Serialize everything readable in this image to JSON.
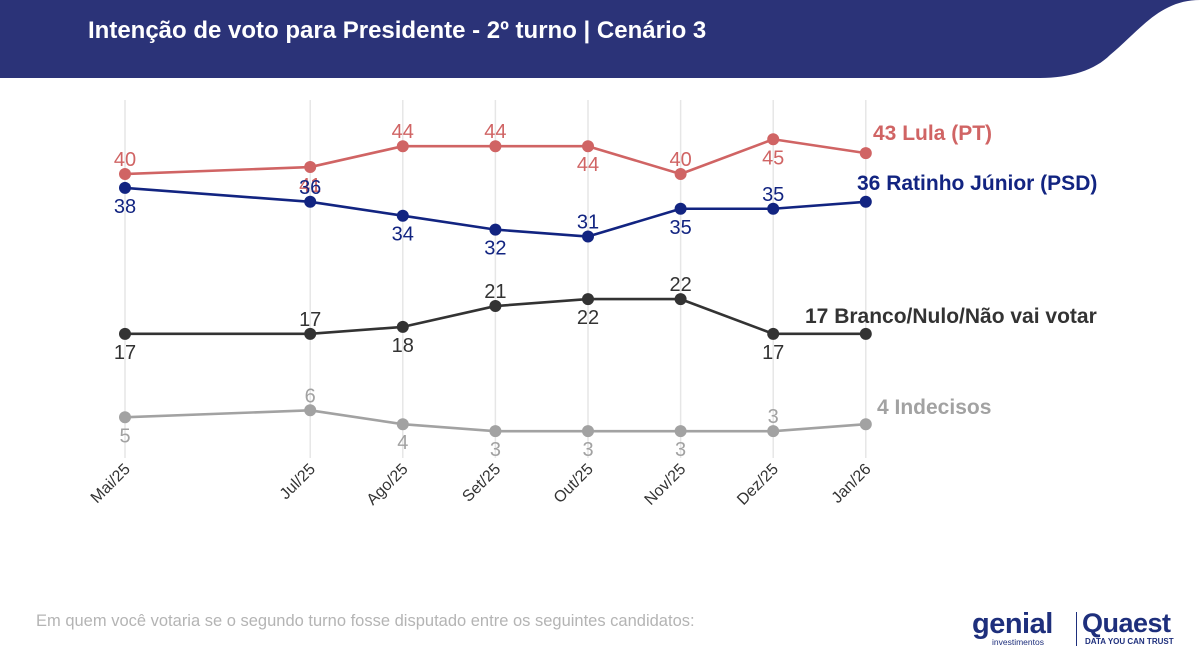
{
  "header": {
    "title": "Intenção de voto para Presidente - 2º turno | Cenário 3",
    "band_color": "#2b3378"
  },
  "chart_data": {
    "type": "line",
    "title": "Intenção de voto para Presidente - 2º turno | Cenário 3",
    "xlabel": "",
    "ylabel": "",
    "categories": [
      "Mai/25",
      "Jul/25",
      "Ago/25",
      "Set/25",
      "Out/25",
      "Nov/25",
      "Dez/25",
      "Jan/26"
    ],
    "category_positions": [
      0,
      2,
      3,
      4,
      5,
      6,
      7,
      8
    ],
    "ylim": [
      0,
      50
    ],
    "grid": "vertical",
    "legend": "direct-labels-right",
    "series": [
      {
        "name": "Lula (PT)",
        "end_label": "43 Lula (PT)",
        "color": "#d06464",
        "values": [
          40,
          41,
          44,
          44,
          44,
          40,
          45,
          43
        ],
        "label_side": [
          "above",
          "below",
          "above",
          "above",
          "below",
          "above",
          "below",
          "none"
        ]
      },
      {
        "name": "Ratinho Júnior (PSD)",
        "end_label": "36 Ratinho Júnior (PSD)",
        "color": "#122481",
        "values": [
          38,
          36,
          34,
          32,
          31,
          35,
          35,
          36
        ],
        "label_side": [
          "below",
          "above",
          "below",
          "below",
          "above",
          "below",
          "above",
          "none"
        ]
      },
      {
        "name": "Branco/Nulo/Não vai votar",
        "end_label": "17 Branco/Nulo/Não vai votar",
        "color": "#333333",
        "values": [
          17,
          17,
          18,
          21,
          22,
          22,
          17,
          17
        ],
        "label_side": [
          "below",
          "above",
          "below",
          "above",
          "below",
          "above",
          "below",
          "none"
        ]
      },
      {
        "name": "Indecisos",
        "end_label": "4 Indecisos",
        "color": "#a2a2a2",
        "values": [
          5,
          6,
          4,
          3,
          3,
          3,
          3,
          4
        ],
        "label_side": [
          "below",
          "above",
          "below",
          "below",
          "below",
          "below",
          "above",
          "none"
        ]
      }
    ]
  },
  "footer": {
    "note": "Em quem você votaria se o segundo turno fosse disputado entre os seguintes candidatos:",
    "logo_genial": "genial",
    "logo_genial_sub": "investimentos",
    "logo_quaest": "Quaest",
    "logo_quaest_sub": "DATA YOU CAN TRUST"
  }
}
